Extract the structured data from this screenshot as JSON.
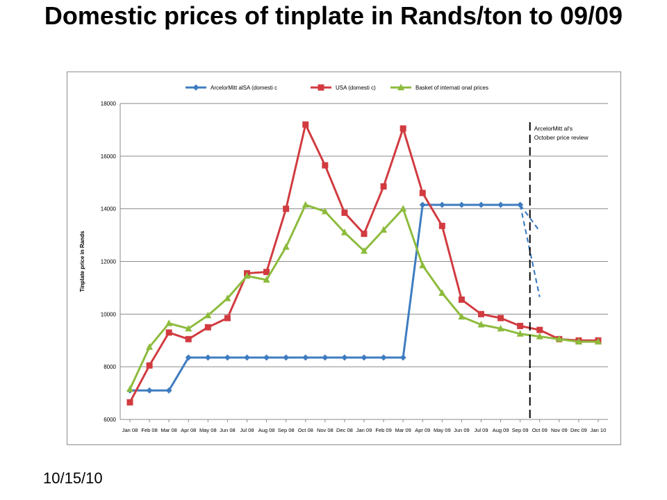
{
  "slide": {
    "title": "Domestic prices of tinplate in Rands/ton to 09/09",
    "footer_date": "10/15/10"
  },
  "chart_data": {
    "type": "line",
    "title": "",
    "xlabel": "",
    "ylabel": "Tinplate price in Rands",
    "ylim": [
      6000,
      18000
    ],
    "y_ticks": [
      6000,
      8000,
      10000,
      12000,
      14000,
      16000,
      18000
    ],
    "grid": true,
    "legend_position": "top",
    "categories": [
      "Jan 08",
      "Feb 08",
      "Mar 08",
      "Apr 08",
      "May 08",
      "Jun 08",
      "Jul 08",
      "Aug 08",
      "Sep 08",
      "Oct 08",
      "Nov 08",
      "Dec 08",
      "Jan 09",
      "Feb 09",
      "Mar 09",
      "Apr 09",
      "May 09",
      "Jun 09",
      "Jul 09",
      "Aug 09",
      "Sep 09",
      "Oct 09",
      "Nov 09",
      "Dec 09",
      "Jan 10"
    ],
    "series": [
      {
        "name": "ArcelorMitt   alSA (domesti  c",
        "color": "#3e7cc0",
        "marker": "diamond",
        "values": [
          7100,
          7100,
          7100,
          8350,
          8350,
          8350,
          8350,
          8350,
          8350,
          8350,
          8350,
          8350,
          8350,
          8350,
          8350,
          14150,
          14150,
          14150,
          14150,
          14150,
          14150,
          null,
          null,
          null,
          null
        ]
      },
      {
        "name": "USA (domesti  c)",
        "color": "#d13b40",
        "marker": "square",
        "values": [
          6650,
          8050,
          9300,
          9050,
          9500,
          9850,
          11550,
          11600,
          14000,
          17200,
          15650,
          13850,
          13050,
          14850,
          17050,
          14600,
          13350,
          10550,
          10000,
          9850,
          9550,
          9400,
          9050,
          9000,
          9000
        ]
      },
      {
        "name": "Basket of internati  onal prices",
        "color": "#8dbb3d",
        "marker": "triangle",
        "values": [
          7150,
          8750,
          9650,
          9450,
          9950,
          10600,
          11450,
          11300,
          12550,
          14150,
          13900,
          13100,
          12400,
          13200,
          14000,
          11850,
          10800,
          9900,
          9600,
          9450,
          9250,
          9150,
          9050,
          8950,
          8950
        ]
      }
    ],
    "projections": [
      {
        "color": "#3e7cc0",
        "from": [
          20,
          14150
        ],
        "to": [
          21,
          13150
        ]
      },
      {
        "color": "#3e7cc0",
        "from": [
          20,
          14150
        ],
        "to": [
          21,
          10650
        ]
      }
    ],
    "annotations": [
      {
        "text_lines": [
          "ArcelorMitt   al's",
          "October price review"
        ],
        "x_category_index": 20.5
      }
    ]
  }
}
